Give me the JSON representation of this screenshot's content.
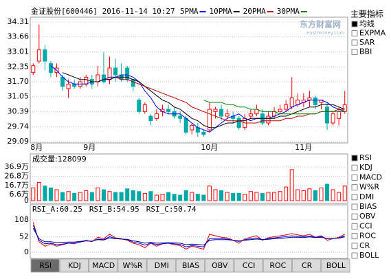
{
  "header": {
    "title": "金证股份[600446] 2016-11-14 10:27",
    "watermark": "东方财富网",
    "watermark_sub": "eastmoney.com"
  },
  "chart_data": [
    {
      "type": "candlestick",
      "categories": [
        "8月",
        null,
        null,
        null,
        null,
        null,
        null,
        null,
        null,
        "9月",
        null,
        null,
        null,
        null,
        null,
        null,
        null,
        null,
        null,
        null,
        null,
        null,
        null,
        null,
        null,
        null,
        null,
        null,
        null,
        "10月",
        null,
        null,
        null,
        null,
        null,
        null,
        null,
        null,
        null,
        null,
        null,
        null,
        null,
        null,
        null,
        "11月",
        null,
        null,
        null,
        null,
        null,
        null,
        null,
        null
      ],
      "open": [
        32.1,
        32.6,
        33.1,
        32.5,
        32.1,
        31.9,
        31.4,
        31.6,
        31.5,
        31.6,
        31.8,
        31.7,
        32.0,
        31.8,
        32.3,
        32.0,
        32.3,
        31.8,
        30.9,
        30.4,
        30.2,
        30.1,
        30.4,
        30.5,
        30.4,
        30.2,
        30.1,
        29.6,
        29.7,
        29.5,
        29.6,
        30.4,
        30.5,
        30.2,
        30.2,
        30.1,
        29.7,
        30.2,
        30.3,
        30.3,
        29.9,
        30.2,
        30.4,
        30.5,
        30.6,
        30.7,
        30.8,
        30.9,
        31.0,
        30.8,
        30.6,
        29.9,
        30.1,
        30.4
      ],
      "high": [
        32.5,
        34.2,
        33.3,
        32.6,
        32.5,
        32.0,
        31.8,
        31.8,
        31.9,
        32.0,
        32.0,
        32.4,
        33.0,
        32.8,
        32.7,
        32.5,
        32.4,
        31.8,
        31.0,
        30.8,
        30.3,
        30.5,
        30.7,
        30.7,
        30.6,
        30.4,
        30.2,
        29.9,
        29.9,
        29.6,
        30.8,
        30.6,
        30.7,
        30.5,
        30.4,
        30.2,
        30.3,
        30.5,
        30.7,
        30.5,
        30.4,
        30.6,
        30.7,
        30.9,
        31.9,
        31.2,
        31.2,
        31.3,
        31.1,
        30.9,
        30.8,
        30.4,
        30.6,
        31.3
      ],
      "low": [
        32.0,
        32.5,
        32.2,
        31.9,
        31.9,
        31.3,
        31.0,
        31.4,
        31.4,
        31.5,
        31.4,
        31.5,
        31.6,
        31.6,
        31.7,
        31.7,
        31.7,
        31.3,
        30.3,
        30.3,
        29.8,
        30.0,
        30.2,
        30.3,
        30.1,
        29.9,
        29.4,
        29.4,
        29.3,
        29.3,
        29.5,
        30.1,
        30.0,
        30.1,
        29.9,
        29.6,
        29.6,
        30.1,
        30.2,
        29.8,
        29.8,
        30.1,
        30.3,
        30.4,
        30.5,
        30.6,
        30.6,
        30.6,
        30.5,
        30.5,
        29.6,
        29.8,
        29.8,
        30.3
      ],
      "close": [
        32.4,
        33.1,
        32.6,
        32.1,
        32.3,
        31.5,
        31.6,
        31.5,
        31.7,
        31.9,
        31.6,
        32.0,
        31.7,
        32.3,
        32.0,
        31.8,
        31.8,
        31.5,
        30.4,
        30.7,
        30.0,
        30.3,
        30.5,
        30.4,
        30.2,
        30.1,
        29.5,
        29.8,
        29.5,
        29.4,
        30.5,
        30.5,
        30.2,
        30.3,
        30.1,
        29.7,
        30.1,
        30.3,
        30.5,
        29.9,
        30.2,
        30.4,
        30.5,
        30.7,
        31.0,
        30.9,
        30.9,
        31.0,
        30.7,
        30.9,
        29.9,
        30.3,
        30.4,
        30.7
      ],
      "up_color": "#ff0000",
      "down_color": "#00a8a8",
      "ylim": [
        29.09,
        34.31
      ],
      "yticks": [
        29.09,
        29.74,
        30.39,
        31.05,
        {
          "value": 31.7,
          "label": "31.70"
        },
        32.35,
        33.01,
        33.66,
        34.31
      ],
      "grid": true,
      "series": [
        {
          "name": "5PMA",
          "color": "#0000ff",
          "values": [
            null,
            null,
            null,
            32.4,
            32.2,
            31.9,
            31.7,
            31.6,
            31.6,
            31.6,
            31.7,
            31.7,
            31.8,
            31.9,
            31.9,
            32.0,
            32.0,
            31.9,
            31.7,
            31.3,
            31.0,
            30.6,
            30.4,
            30.3,
            30.3,
            30.3,
            30.1,
            29.9,
            29.7,
            29.6,
            29.5,
            29.7,
            29.9,
            30.1,
            30.2,
            30.3,
            30.1,
            30.0,
            30.1,
            30.1,
            30.1,
            30.2,
            30.3,
            30.4,
            30.6,
            30.7,
            30.8,
            30.9,
            30.9,
            30.9,
            30.8,
            30.6,
            30.5,
            30.4
          ]
        },
        {
          "name": "10PMA",
          "color": "#000000",
          "values": [
            null,
            null,
            null,
            null,
            null,
            32.1,
            32.0,
            31.9,
            31.8,
            31.8,
            31.7,
            31.7,
            31.8,
            31.8,
            31.9,
            31.9,
            31.9,
            31.8,
            31.7,
            31.5,
            31.3,
            31.1,
            30.9,
            30.8,
            30.6,
            30.5,
            30.3,
            30.1,
            30.0,
            29.8,
            29.7,
            29.7,
            29.8,
            29.9,
            29.9,
            30.0,
            30.0,
            30.1,
            30.1,
            30.1,
            30.1,
            30.1,
            30.2,
            30.2,
            30.3,
            30.4,
            30.5,
            30.6,
            30.6,
            30.7,
            30.7,
            30.7,
            30.6,
            30.5
          ]
        },
        {
          "name": "20PMA",
          "color": "#c00000",
          "values": [
            null,
            null,
            null,
            null,
            null,
            null,
            null,
            null,
            null,
            null,
            null,
            null,
            null,
            null,
            31.9,
            31.8,
            31.8,
            31.7,
            31.6,
            31.5,
            31.4,
            31.3,
            31.2,
            31.1,
            31.0,
            30.9,
            30.8,
            30.6,
            30.5,
            30.4,
            30.3,
            30.2,
            30.1,
            30.0,
            30.0,
            30.0,
            29.9,
            29.9,
            29.9,
            30.0,
            30.0,
            30.0,
            30.0,
            30.1,
            30.1,
            30.2,
            30.2,
            30.3,
            30.3,
            30.4,
            30.4,
            30.4,
            30.5,
            30.5
          ]
        },
        {
          "name": "30PMA",
          "color": "#008000",
          "values": [
            null,
            null,
            null,
            null,
            null,
            null,
            null,
            null,
            null,
            null,
            null,
            null,
            null,
            null,
            null,
            null,
            null,
            null,
            null,
            null,
            null,
            null,
            null,
            null,
            null,
            null,
            null,
            null,
            null,
            30.9,
            30.8,
            30.8,
            30.8,
            30.7,
            30.7,
            30.6,
            30.6,
            30.5,
            30.5,
            30.4,
            30.4,
            30.4,
            30.3,
            30.3,
            30.3,
            30.3,
            30.3,
            30.3,
            30.3,
            30.4,
            30.4,
            30.4,
            30.4,
            30.4
          ]
        }
      ]
    },
    {
      "type": "bar",
      "title": "成交量:128099",
      "values": [
        14,
        20,
        16,
        14,
        12,
        9,
        10,
        8,
        9,
        11,
        9,
        14,
        12,
        10,
        9,
        9,
        13,
        11,
        10,
        8,
        10,
        6,
        7,
        9,
        7,
        6,
        11,
        9,
        7,
        6,
        16,
        12,
        11,
        9,
        8,
        8,
        7,
        10,
        9,
        8,
        9,
        9,
        10,
        15,
        34,
        12,
        11,
        13,
        11,
        14,
        18,
        12,
        9,
        16
      ],
      "ylim": [
        0,
        36.9
      ],
      "yticks": [
        0,
        {
          "value": 6.6,
          "label": "6.6万"
        },
        {
          "value": 16.7,
          "label": "16.7万"
        },
        {
          "value": 26.8,
          "label": "26.8万"
        },
        {
          "value": 36.9,
          "label": "36.9万"
        }
      ],
      "grid": true
    },
    {
      "type": "line",
      "ylim": [
        0,
        108
      ],
      "yticks": [
        0,
        52,
        108
      ],
      "grid": true,
      "series": [
        {
          "name": "RSI_A:60.25",
          "color": "#e00000",
          "values": [
            100,
            35,
            20,
            28,
            20,
            25,
            30,
            28,
            35,
            40,
            35,
            50,
            45,
            60,
            48,
            45,
            40,
            30,
            25,
            15,
            30,
            20,
            28,
            30,
            25,
            22,
            10,
            20,
            15,
            10,
            60,
            55,
            50,
            48,
            40,
            30,
            45,
            50,
            55,
            40,
            48,
            52,
            55,
            58,
            62,
            58,
            55,
            60,
            50,
            55,
            40,
            45,
            50,
            60
          ]
        },
        {
          "name": "RSI_B:54.95",
          "color": "#0000ff",
          "values": [
            90,
            40,
            28,
            30,
            25,
            27,
            30,
            30,
            34,
            38,
            36,
            44,
            42,
            52,
            46,
            44,
            42,
            34,
            30,
            24,
            30,
            26,
            28,
            30,
            28,
            26,
            18,
            22,
            20,
            18,
            45,
            46,
            45,
            44,
            40,
            36,
            42,
            45,
            48,
            42,
            45,
            48,
            50,
            52,
            55,
            53,
            52,
            54,
            50,
            52,
            45,
            46,
            48,
            55
          ]
        },
        {
          "name": "RSI_C:50.74",
          "color": "#000080",
          "values": [
            80,
            45,
            35,
            35,
            32,
            33,
            34,
            34,
            36,
            38,
            37,
            42,
            41,
            48,
            45,
            44,
            43,
            38,
            35,
            30,
            33,
            30,
            31,
            32,
            31,
            30,
            25,
            27,
            26,
            24,
            40,
            42,
            42,
            42,
            40,
            38,
            40,
            42,
            44,
            42,
            43,
            45,
            46,
            48,
            50,
            50,
            49,
            51,
            49,
            50,
            46,
            46,
            47,
            51
          ]
        }
      ]
    }
  ],
  "main_indicators": {
    "title": "主要指标",
    "items": [
      {
        "label": "均线",
        "selected": true
      },
      {
        "label": "EXPMA",
        "selected": false
      },
      {
        "label": "SAR",
        "selected": false
      },
      {
        "label": "BBI",
        "selected": false
      }
    ]
  },
  "sub_indicators": {
    "items": [
      {
        "label": "RSI",
        "selected": true
      },
      {
        "label": "KDJ",
        "selected": false
      },
      {
        "label": "MACD",
        "selected": false
      },
      {
        "label": "W%R",
        "selected": false
      },
      {
        "label": "DMI",
        "selected": false
      },
      {
        "label": "BIAS",
        "selected": false
      },
      {
        "label": "OBV",
        "selected": false
      },
      {
        "label": "CCI",
        "selected": false
      },
      {
        "label": "ROC",
        "selected": false
      },
      {
        "label": "CR",
        "selected": false
      },
      {
        "label": "BOLL",
        "selected": false
      }
    ]
  },
  "tabs": {
    "items": [
      "RSI",
      "KDJ",
      "MACD",
      "W%R",
      "DMI",
      "BIAS",
      "OBV",
      "CCI",
      "ROC",
      "CR",
      "BOLL"
    ],
    "active": 0
  }
}
